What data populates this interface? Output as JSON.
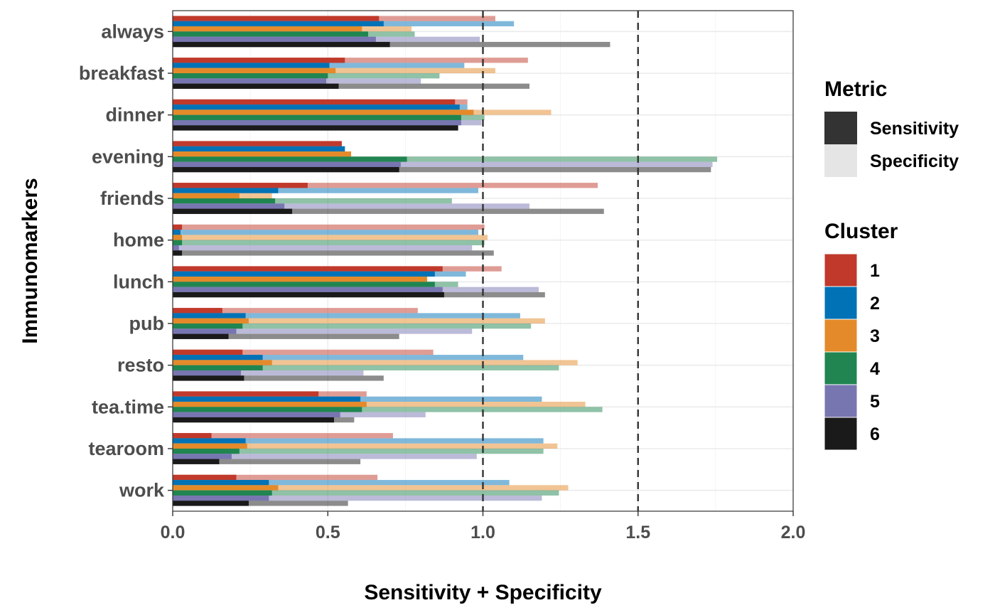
{
  "chart_data": {
    "type": "bar",
    "orientation": "horizontal",
    "stacked": true,
    "xlabel": "Sensitivity + Specificity",
    "ylabel": "Immunomarkers",
    "xlim": [
      0,
      2
    ],
    "x_ticks": [
      "0.0",
      "0.5",
      "1.0",
      "1.5",
      "2.0"
    ],
    "reference_lines": [
      1.0,
      1.5
    ],
    "grid": true,
    "categories": [
      "always",
      "breakfast",
      "dinner",
      "evening",
      "friends",
      "home",
      "lunch",
      "pub",
      "resto",
      "tea.time",
      "tearoom",
      "work"
    ],
    "clusters": [
      "1",
      "2",
      "3",
      "4",
      "5",
      "6"
    ],
    "cluster_colors": [
      "#C0392B",
      "#0072B5",
      "#E48A2A",
      "#208550",
      "#7876B1",
      "#1A1A1A"
    ],
    "metric_colors": {
      "Sensitivity": "#333333",
      "Specificity": "#E5E5E5"
    },
    "series": [
      {
        "name": "1",
        "sensitivity": [
          0.665,
          0.555,
          0.91,
          0.545,
          0.435,
          0.03,
          0.87,
          0.16,
          0.225,
          0.47,
          0.125,
          0.205
        ],
        "total": [
          1.04,
          1.145,
          0.95,
          0.545,
          1.37,
          1.005,
          1.06,
          0.79,
          0.84,
          0.625,
          0.71,
          0.66
        ]
      },
      {
        "name": "2",
        "sensitivity": [
          0.68,
          0.505,
          0.925,
          0.555,
          0.34,
          0.025,
          0.845,
          0.235,
          0.29,
          0.605,
          0.235,
          0.31
        ],
        "total": [
          1.1,
          0.94,
          0.95,
          0.555,
          0.985,
          0.985,
          0.945,
          1.12,
          1.13,
          1.19,
          1.195,
          1.085
        ]
      },
      {
        "name": "3",
        "sensitivity": [
          0.61,
          0.525,
          0.97,
          0.575,
          0.215,
          0.03,
          0.82,
          0.245,
          0.32,
          0.625,
          0.24,
          0.34
        ],
        "total": [
          0.77,
          1.04,
          1.22,
          0.575,
          0.32,
          1.015,
          0.82,
          1.2,
          1.305,
          1.33,
          1.24,
          1.275
        ]
      },
      {
        "name": "4",
        "sensitivity": [
          0.63,
          0.5,
          0.93,
          0.755,
          0.33,
          0.03,
          0.845,
          0.225,
          0.29,
          0.61,
          0.215,
          0.32
        ],
        "total": [
          0.78,
          0.86,
          1.005,
          1.755,
          0.9,
          1.005,
          0.92,
          1.155,
          1.245,
          1.385,
          1.195,
          1.245
        ]
      },
      {
        "name": "5",
        "sensitivity": [
          0.655,
          0.495,
          0.93,
          0.735,
          0.36,
          0.02,
          0.87,
          0.205,
          0.22,
          0.54,
          0.19,
          0.31
        ],
        "total": [
          0.99,
          0.8,
          0.995,
          1.74,
          1.15,
          0.965,
          1.18,
          0.965,
          0.615,
          0.815,
          0.98,
          1.19
        ]
      },
      {
        "name": "6",
        "sensitivity": [
          0.7,
          0.535,
          0.92,
          0.73,
          0.385,
          0.03,
          0.875,
          0.18,
          0.23,
          0.52,
          0.15,
          0.245
        ],
        "total": [
          1.41,
          1.15,
          0.92,
          1.735,
          1.39,
          1.035,
          1.2,
          0.73,
          0.68,
          0.585,
          0.605,
          0.565
        ]
      }
    ],
    "legends": [
      {
        "title": "Metric",
        "entries": [
          "Sensitivity",
          "Specificity"
        ]
      },
      {
        "title": "Cluster",
        "entries": [
          "1",
          "2",
          "3",
          "4",
          "5",
          "6"
        ]
      }
    ]
  }
}
